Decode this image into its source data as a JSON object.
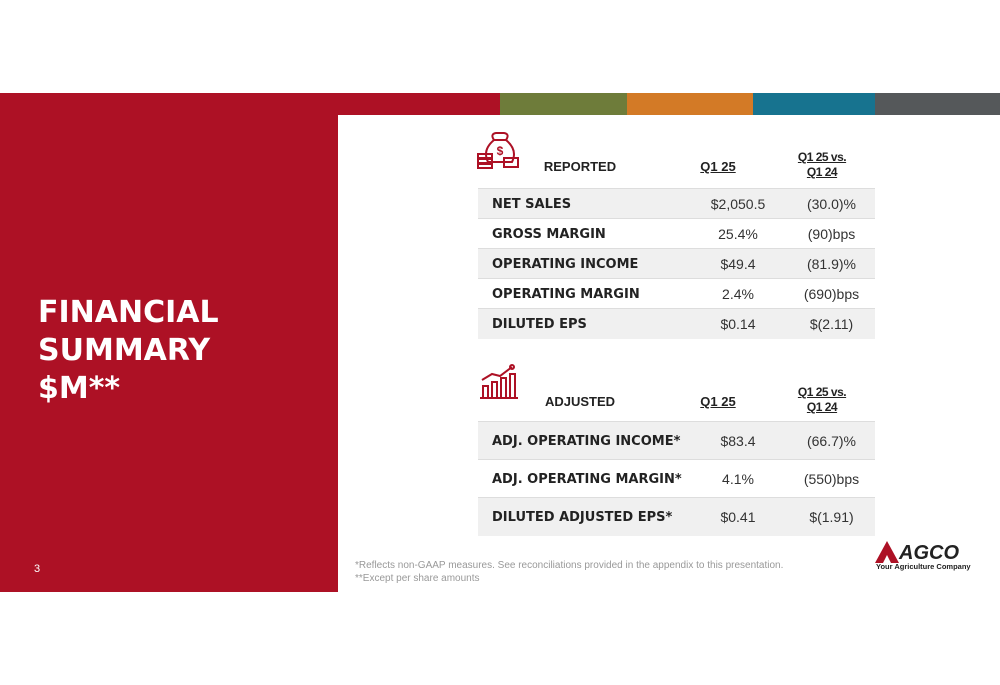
{
  "slide": {
    "title": [
      "FINANCIAL",
      "SUMMARY",
      "$M**"
    ],
    "page_number": "3",
    "reported": {
      "header": {
        "label": "REPORTED",
        "col1": "Q1 25",
        "col2": [
          "Q1 25 vs.",
          "Q1 24"
        ]
      },
      "rows": [
        [
          "NET SALES",
          "$2,050.5",
          "(30.0)%"
        ],
        [
          "GROSS MARGIN",
          "25.4%",
          "(90)bps"
        ],
        [
          "OPERATING INCOME",
          "$49.4",
          "(81.9)%"
        ],
        [
          "OPERATING MARGIN",
          "2.4%",
          "(690)bps"
        ],
        [
          "DILUTED EPS",
          "$0.14",
          "$(2.11)"
        ]
      ]
    },
    "adjusted": {
      "header": {
        "label": "ADJUSTED",
        "col1": "Q1 25",
        "col2": [
          "Q1 25 vs.",
          "Q1 24"
        ]
      },
      "rows": [
        [
          "ADJ. OPERATING INCOME*",
          "$83.4",
          "(66.7)%"
        ],
        [
          "ADJ. OPERATING MARGIN*",
          "4.1%",
          "(550)bps"
        ],
        [
          "DILUTED ADJUSTED EPS*",
          "$0.41",
          "$(1.91)"
        ]
      ]
    },
    "footnotes": [
      "*Reflects non-GAAP measures. See reconciliations provided in the appendix to this presentation.",
      "**Except per share amounts"
    ],
    "logo": {
      "name": "AGCO",
      "tagline": "Your Agriculture Company"
    }
  }
}
